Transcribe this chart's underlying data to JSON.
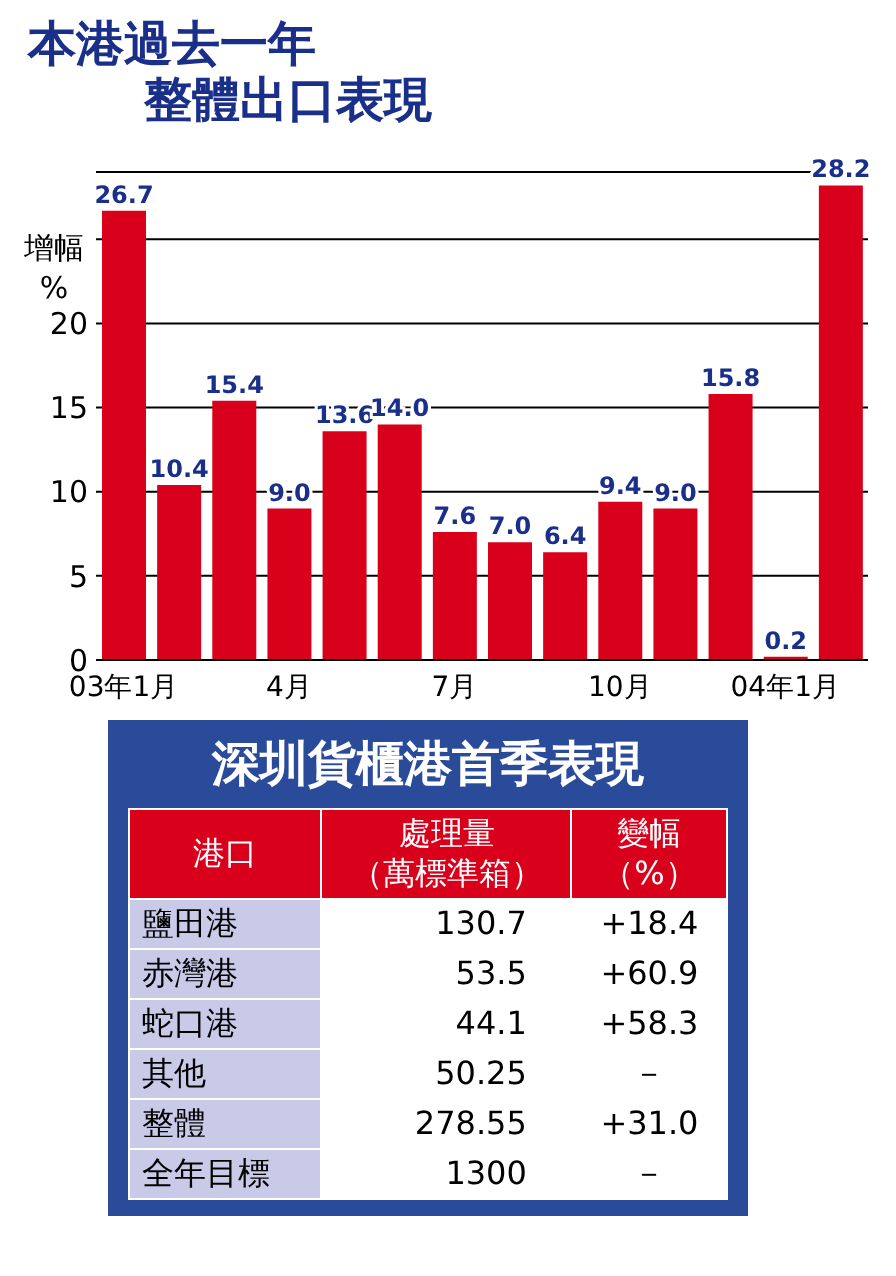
{
  "chart_data": [
    {
      "type": "bar",
      "title": "本港過去一年",
      "subtitle": "整體出口表現",
      "ylabel": "增幅\n%",
      "categories": [
        "03年1月",
        null,
        null,
        "4月",
        null,
        null,
        "7月",
        null,
        null,
        "10月",
        null,
        null,
        "04年1月",
        null
      ],
      "values": [
        26.7,
        10.4,
        15.4,
        9.0,
        13.6,
        14.0,
        7.6,
        7.0,
        6.4,
        9.4,
        9.0,
        15.8,
        0.2,
        28.2
      ],
      "color": "#d9001b",
      "value_labels": [
        "26.7",
        "10.4",
        "15.4",
        "9.0",
        "13.6",
        "14.0",
        "7.6",
        "7.0",
        "6.4",
        "9.4",
        "9.0",
        "15.8",
        "0.2",
        "28.2"
      ],
      "ylim": [
        0,
        29
      ],
      "yticks": [
        0,
        5,
        10,
        15,
        20,
        {
          "value": 25,
          "label": null
        }
      ],
      "grid": "y"
    },
    {
      "type": "other",
      "title": "深圳貨櫃港首季表現",
      "annotations": [
        "港口",
        "處理量（萬標準箱）",
        "變幅（%）",
        "鹽田港",
        "130.7",
        "+18.4",
        "赤灣港",
        "53.5",
        "+60.9",
        "蛇口港",
        "44.1",
        "+58.3",
        "其他",
        "50.25",
        "－",
        "整體",
        "278.55",
        "+31.0",
        "全年目標",
        "1300",
        "－"
      ]
    }
  ]
}
